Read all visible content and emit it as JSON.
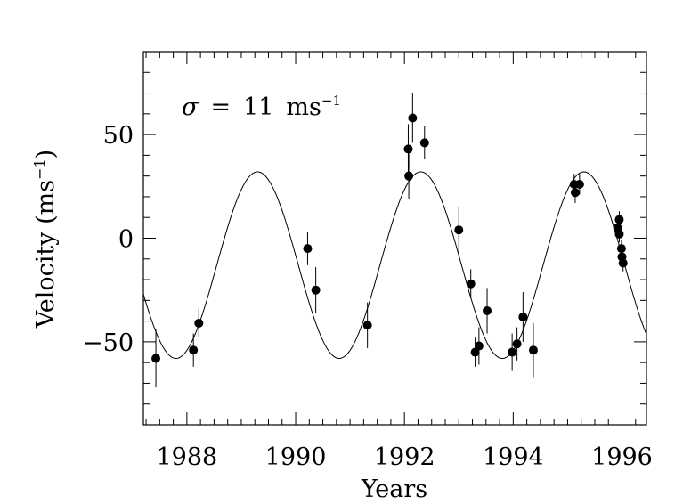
{
  "chart_data": {
    "type": "scatter",
    "xlabel": "Years",
    "ylabel": "Velocity (ms",
    "ylabel_sup": "−1",
    "ylabel_close": ")",
    "annotation": {
      "sigma": "σ",
      "eq": "=",
      "value": "11",
      "unit": "ms",
      "unit_sup": "−1"
    },
    "xlim": [
      1987.2,
      1996.45
    ],
    "ylim": [
      -90,
      90
    ],
    "x_ticks": [
      1988,
      1990,
      1992,
      1994,
      1996
    ],
    "x_tick_labels": [
      "1988",
      "1990",
      "1992",
      "1994",
      "1996"
    ],
    "y_ticks": [
      -50,
      0,
      50
    ],
    "y_tick_labels": [
      "−50",
      "0",
      "50"
    ],
    "x_minor_step": 0.25,
    "y_minor_step": 10,
    "fit": {
      "type": "sine",
      "amplitude": 45,
      "offset": -13,
      "period": 3.0,
      "peak_at": 1989.3
    },
    "points": [
      {
        "x": 1987.43,
        "y": -58,
        "err": 14
      },
      {
        "x": 1988.12,
        "y": -54,
        "err": 8
      },
      {
        "x": 1988.22,
        "y": -41,
        "err": 7
      },
      {
        "x": 1990.22,
        "y": -5,
        "err": 8
      },
      {
        "x": 1990.37,
        "y": -25,
        "err": 11
      },
      {
        "x": 1991.32,
        "y": -42,
        "err": 11
      },
      {
        "x": 1992.07,
        "y": 43,
        "err": 12
      },
      {
        "x": 1992.08,
        "y": 30,
        "err": 11
      },
      {
        "x": 1992.15,
        "y": 58,
        "err": 12
      },
      {
        "x": 1992.37,
        "y": 46,
        "err": 8
      },
      {
        "x": 1993.0,
        "y": 4,
        "err": 11
      },
      {
        "x": 1993.22,
        "y": -22,
        "err": 7
      },
      {
        "x": 1993.3,
        "y": -55,
        "err": 7
      },
      {
        "x": 1993.37,
        "y": -52,
        "err": 9
      },
      {
        "x": 1993.52,
        "y": -35,
        "err": 11
      },
      {
        "x": 1993.98,
        "y": -55,
        "err": 9
      },
      {
        "x": 1994.07,
        "y": -51,
        "err": 8
      },
      {
        "x": 1994.18,
        "y": -38,
        "err": 12
      },
      {
        "x": 1994.37,
        "y": -54,
        "err": 13
      },
      {
        "x": 1995.12,
        "y": 26,
        "err": 5
      },
      {
        "x": 1995.14,
        "y": 22,
        "err": 5
      },
      {
        "x": 1995.22,
        "y": 26,
        "err": 5
      },
      {
        "x": 1995.92,
        "y": 5,
        "err": 4
      },
      {
        "x": 1995.95,
        "y": 9,
        "err": 4
      },
      {
        "x": 1995.95,
        "y": 2,
        "err": 4
      },
      {
        "x": 1995.99,
        "y": -5,
        "err": 4
      },
      {
        "x": 1996.0,
        "y": -9,
        "err": 4
      },
      {
        "x": 1996.02,
        "y": -12,
        "err": 4
      }
    ]
  }
}
